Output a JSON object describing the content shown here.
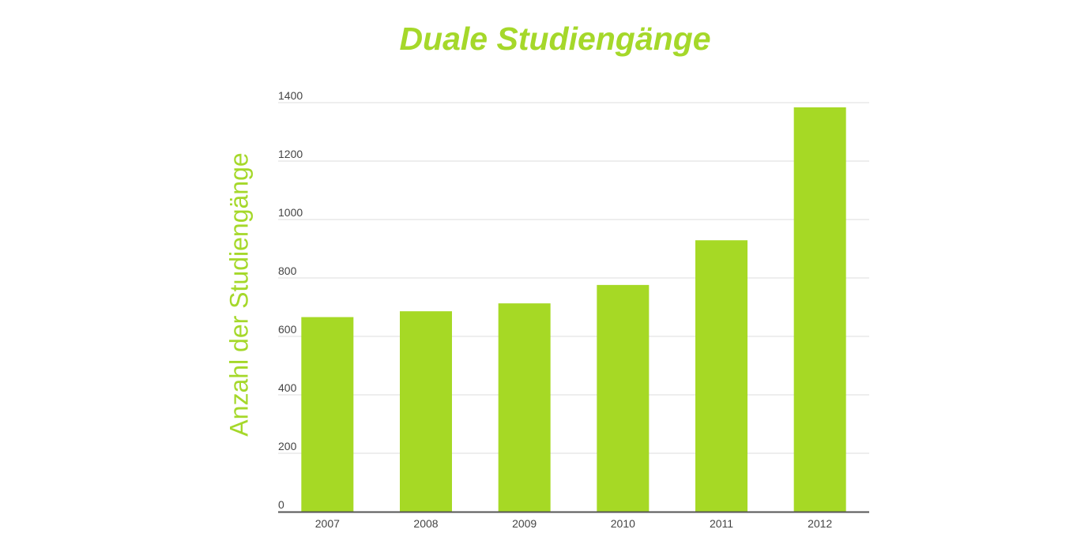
{
  "chart_data": {
    "type": "bar",
    "title": "Duale Studiengänge",
    "xlabel": "",
    "ylabel": "Anzahl der Studiengänge",
    "categories": [
      "2007",
      "2008",
      "2009",
      "2010",
      "2011",
      "2012"
    ],
    "values": [
      666,
      686,
      713,
      776,
      929,
      1384
    ],
    "ylim": [
      0,
      1400
    ],
    "yticks": [
      "0",
      "200",
      "400",
      "600",
      "800",
      "1000",
      "1200",
      "1400"
    ],
    "grid": true,
    "legend": "none",
    "bar_color": "#a6d925",
    "title_color": "#a5d82a",
    "gridline_color": "#dddddd",
    "axis_color": "#555555"
  }
}
